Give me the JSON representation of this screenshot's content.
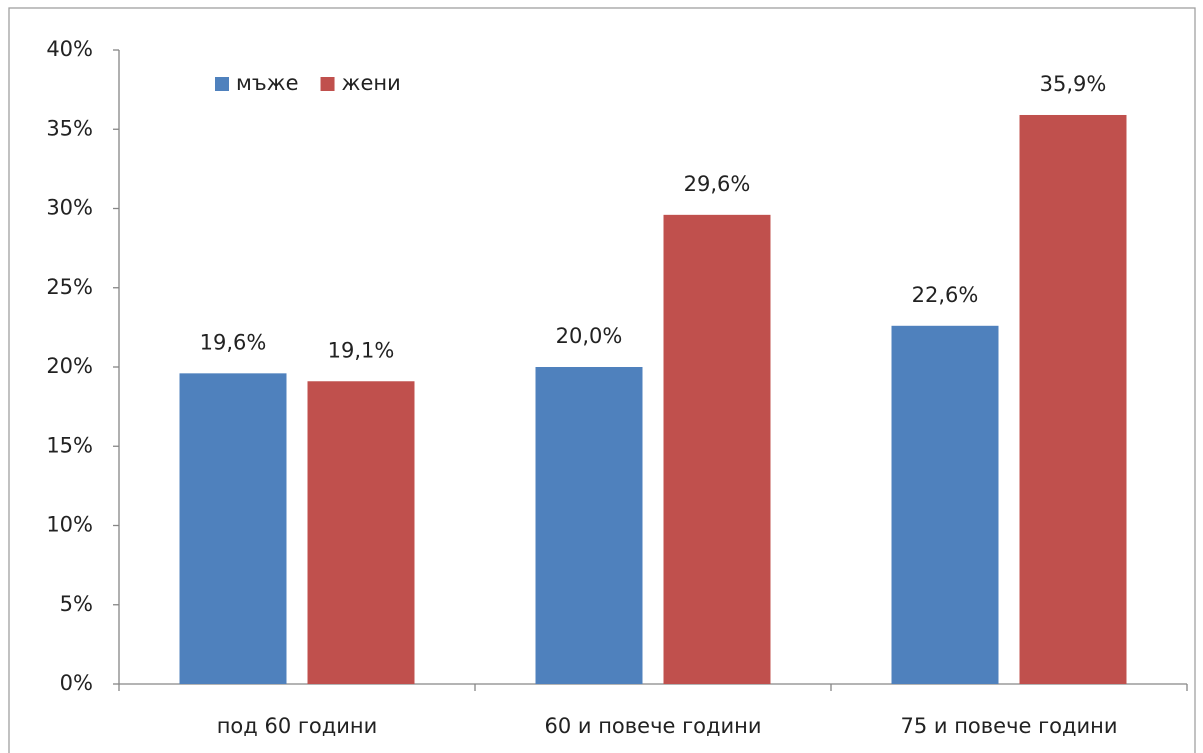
{
  "chart_data": {
    "type": "bar",
    "categories": [
      "под 60 години",
      "60 и повече години",
      "75 и повече години"
    ],
    "series": [
      {
        "name": "мъже",
        "color": "#4f81bd",
        "values": [
          19.6,
          20.0,
          22.6
        ],
        "value_labels": [
          "19,6%",
          "20,0%",
          "22,6%"
        ]
      },
      {
        "name": "жени",
        "color": "#c0504d",
        "values": [
          19.1,
          29.6,
          35.9
        ],
        "value_labels": [
          "19,1%",
          "29,6%",
          "35,9%"
        ]
      }
    ],
    "ylim": [
      0,
      40
    ],
    "yticks": [
      {
        "value": 0,
        "label": "0%"
      },
      {
        "value": 5,
        "label": "5%"
      },
      {
        "value": 10,
        "label": "10%"
      },
      {
        "value": 15,
        "label": "15%"
      },
      {
        "value": 20,
        "label": "20%"
      },
      {
        "value": 25,
        "label": "25%"
      },
      {
        "value": 30,
        "label": "30%"
      },
      {
        "value": 35,
        "label": "35%"
      },
      {
        "value": 40,
        "label": "40%"
      }
    ],
    "legend": "upper left",
    "grid": false
  }
}
